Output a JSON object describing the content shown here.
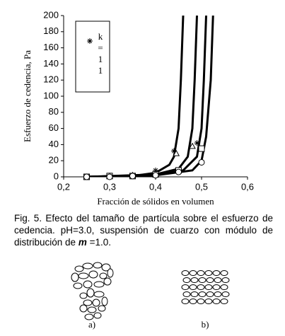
{
  "chart_data": {
    "type": "line",
    "ylabel": "Esfuerzo de cedencia, Pa",
    "xlabel": "Fracción de sólidos en volumen",
    "xlim": [
      0.2,
      0.6
    ],
    "xticks": [
      {
        "value": 0.2,
        "label": "0,2"
      },
      {
        "value": 0.3,
        "label": "0,3"
      },
      {
        "value": 0.4,
        "label": "0,4"
      },
      {
        "value": 0.5,
        "label": "0,5"
      },
      {
        "value": 0.6,
        "label": "0,6"
      }
    ],
    "ylim": [
      0,
      200
    ],
    "yticks": [
      0,
      20,
      40,
      60,
      80,
      100,
      120,
      140,
      160,
      180,
      200
    ],
    "series": [
      {
        "name": "k=11",
        "marker": "star",
        "color": "#000000",
        "x": [
          0.25,
          0.3,
          0.35,
          0.4,
          0.44,
          0.49
        ],
        "values": [
          0,
          1,
          2,
          8,
          32,
          42
        ]
      },
      {
        "marker": "triangle",
        "color": "#000000",
        "x": [
          0.25,
          0.3,
          0.35,
          0.4,
          0.445,
          0.48
        ],
        "values": [
          0,
          1,
          2,
          5,
          29,
          38
        ]
      },
      {
        "marker": "square",
        "color": "#000000",
        "x": [
          0.25,
          0.3,
          0.35,
          0.4,
          0.45,
          0.5
        ],
        "values": [
          0,
          1,
          1,
          3,
          8,
          35
        ]
      },
      {
        "marker": "circle",
        "color": "#000000",
        "x": [
          0.25,
          0.3,
          0.35,
          0.4,
          0.45,
          0.5
        ],
        "values": [
          0,
          0,
          1,
          2,
          6,
          18
        ]
      },
      {
        "marker": "none",
        "color": "#000000",
        "x": [
          0.25,
          0.35,
          0.4,
          0.43,
          0.44,
          0.45,
          0.455,
          0.46
        ],
        "values": [
          0,
          1,
          5,
          15,
          25,
          60,
          120,
          200
        ]
      },
      {
        "marker": "none",
        "color": "#000000",
        "x": [
          0.25,
          0.4,
          0.45,
          0.47,
          0.48,
          0.485,
          0.49
        ],
        "values": [
          0,
          3,
          10,
          25,
          60,
          120,
          200
        ]
      },
      {
        "marker": "none",
        "color": "#000000",
        "x": [
          0.25,
          0.4,
          0.46,
          0.49,
          0.5,
          0.505,
          0.51
        ],
        "values": [
          0,
          2,
          8,
          25,
          60,
          120,
          200
        ]
      },
      {
        "marker": "none",
        "color": "#000000",
        "x": [
          0.25,
          0.4,
          0.48,
          0.5,
          0.51,
          0.52,
          0.525
        ],
        "values": [
          0,
          2,
          8,
          20,
          50,
          120,
          200
        ]
      }
    ]
  },
  "caption": {
    "before": "Fig. 5. Efecto del tamaño de partícula sobre el esfuerzo de cedencia. pH=3.0, suspensión de cuarzo con módulo de distribución de",
    "symbol": "m",
    "after": "=1.0."
  },
  "figure_labels": [
    "a)",
    "b)"
  ]
}
